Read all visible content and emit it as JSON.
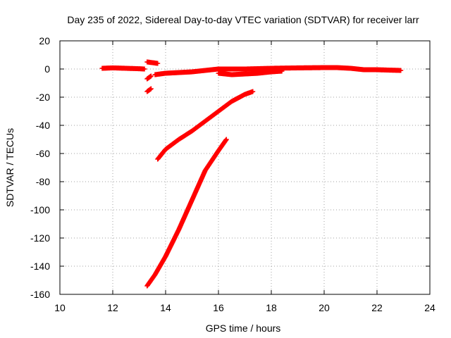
{
  "chart_data": {
    "type": "scatter",
    "title": "Day 235 of 2022, Sidereal Day-to-day VTEC variation (SDTVAR) for receiver larr",
    "xlabel": "GPS time / hours",
    "ylabel": "SDTVAR / TECUs",
    "xlim": [
      10,
      24
    ],
    "ylim": [
      -160,
      20
    ],
    "xticks": [
      10,
      12,
      14,
      16,
      18,
      20,
      22,
      24
    ],
    "yticks": [
      -160,
      -140,
      -120,
      -100,
      -80,
      -60,
      -40,
      -20,
      0,
      20
    ],
    "grid": true,
    "color": "#ff0000",
    "marker": "plus",
    "series": [
      {
        "x": [
          11.6,
          12.0,
          12.5,
          13.0,
          13.2
        ],
        "y": [
          0.5,
          0.8,
          0.5,
          0.2,
          0.0
        ]
      },
      {
        "x": [
          13.3,
          13.5,
          13.7
        ],
        "y": [
          5,
          4.5,
          4
        ]
      },
      {
        "x": [
          13.3,
          13.45
        ],
        "y": [
          -7,
          -5
        ]
      },
      {
        "x": [
          13.3,
          13.45
        ],
        "y": [
          -16,
          -14
        ]
      },
      {
        "x": [
          13.6,
          14.0,
          14.5,
          15.0,
          15.5,
          16.0,
          16.5,
          17.0,
          18.0,
          19.0,
          20.0,
          20.5,
          21.0,
          21.5,
          22.0,
          22.5,
          22.9
        ],
        "y": [
          -4,
          -3,
          -2.5,
          -2,
          -1,
          0,
          0,
          0,
          0.5,
          0.8,
          1,
          1,
          0.5,
          -0.5,
          -0.5,
          -0.8,
          -1
        ]
      },
      {
        "x": [
          16.0,
          16.5,
          17.0,
          17.5,
          18.0,
          18.4
        ],
        "y": [
          -3,
          -4,
          -3.5,
          -3,
          -2,
          -1.5
        ]
      },
      {
        "x": [
          13.7,
          14.0,
          14.5,
          15.0,
          15.5,
          16.0,
          16.5,
          17.0,
          17.3
        ],
        "y": [
          -64,
          -57,
          -50,
          -44,
          -37,
          -30,
          -23,
          -18,
          -16
        ]
      },
      {
        "x": [
          13.3,
          13.6,
          14.0,
          14.5,
          15.0,
          15.5,
          16.0,
          16.3
        ],
        "y": [
          -154,
          -146,
          -133,
          -114,
          -93,
          -72,
          -58,
          -50
        ]
      }
    ]
  }
}
